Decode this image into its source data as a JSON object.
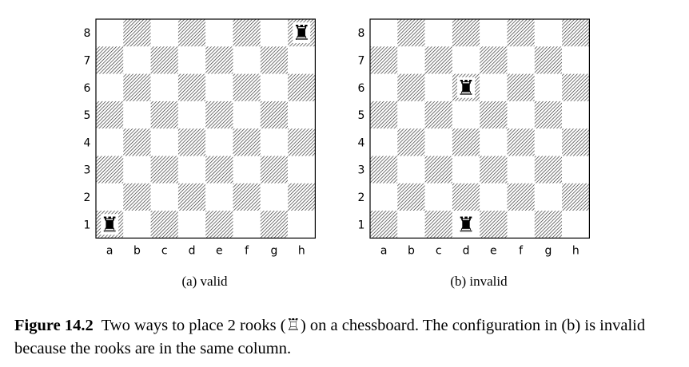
{
  "boards": [
    {
      "id": "a",
      "caption": "(a) valid",
      "files": [
        "a",
        "b",
        "c",
        "d",
        "e",
        "f",
        "g",
        "h"
      ],
      "ranks": [
        "8",
        "7",
        "6",
        "5",
        "4",
        "3",
        "2",
        "1"
      ],
      "pieces": [
        {
          "piece": "rook",
          "glyph": "♜",
          "square": "h8"
        },
        {
          "piece": "rook",
          "glyph": "♜",
          "square": "a1"
        }
      ]
    },
    {
      "id": "b",
      "caption": "(b) invalid",
      "files": [
        "a",
        "b",
        "c",
        "d",
        "e",
        "f",
        "g",
        "h"
      ],
      "ranks": [
        "8",
        "7",
        "6",
        "5",
        "4",
        "3",
        "2",
        "1"
      ],
      "pieces": [
        {
          "piece": "rook",
          "glyph": "♜",
          "square": "d6"
        },
        {
          "piece": "rook",
          "glyph": "♜",
          "square": "d1"
        }
      ]
    }
  ],
  "figure": {
    "label": "Figure 14.2",
    "text_before_icon": "Two ways to place 2 rooks (",
    "rook_icon": "♖",
    "text_after_icon": ") on a chessboard. The configuration in (b) is invalid because the rooks are in the same column."
  },
  "colors": {
    "hatch": "#2a2a2a",
    "border": "#000000"
  }
}
